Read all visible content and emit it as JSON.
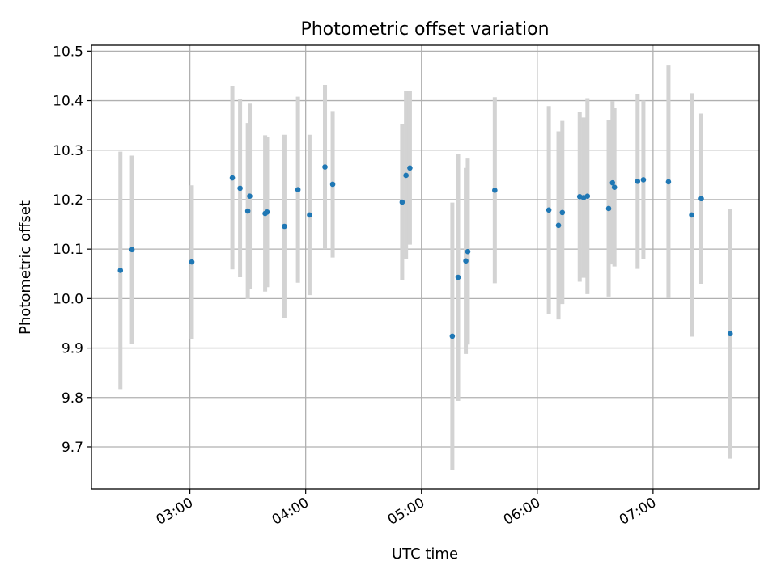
{
  "chart_data": {
    "type": "scatter",
    "title": "Photometric offset variation",
    "xlabel": "UTC time",
    "ylabel": "Photometric offset",
    "x_tick_labels": [
      "03:00",
      "04:00",
      "05:00",
      "06:00",
      "07:00"
    ],
    "x_ticks_minutes": [
      180,
      240,
      300,
      360,
      420
    ],
    "xlim_minutes": [
      129,
      475
    ],
    "y_ticks": [
      9.7,
      9.8,
      9.9,
      10.0,
      10.1,
      10.2,
      10.3,
      10.4,
      10.5
    ],
    "y_tick_labels": [
      "9.7",
      "9.8",
      "9.9",
      "10.0",
      "10.1",
      "10.2",
      "10.3",
      "10.4",
      "10.5"
    ],
    "ylim": [
      9.615,
      10.512
    ],
    "grid": true,
    "marker_color": "#1f77b4",
    "errorbar_color": "#d3d3d3",
    "series": [
      {
        "points": [
          {
            "t": "02:24",
            "y": 10.057,
            "err": 0.24
          },
          {
            "t": "02:30",
            "y": 10.099,
            "err": 0.19
          },
          {
            "t": "03:01",
            "y": 10.074,
            "err": 0.155
          },
          {
            "t": "03:22",
            "y": 10.244,
            "err": 0.185
          },
          {
            "t": "03:26",
            "y": 10.223,
            "err": 0.18
          },
          {
            "t": "03:30",
            "y": 10.177,
            "err": 0.178
          },
          {
            "t": "03:31",
            "y": 10.207,
            "err": 0.187
          },
          {
            "t": "03:39",
            "y": 10.172,
            "err": 0.158
          },
          {
            "t": "03:40",
            "y": 10.175,
            "err": 0.152
          },
          {
            "t": "03:49",
            "y": 10.146,
            "err": 0.185
          },
          {
            "t": "03:56",
            "y": 10.22,
            "err": 0.188
          },
          {
            "t": "04:02",
            "y": 10.169,
            "err": 0.162
          },
          {
            "t": "04:10",
            "y": 10.266,
            "err": 0.166
          },
          {
            "t": "04:14",
            "y": 10.231,
            "err": 0.148
          },
          {
            "t": "04:50",
            "y": 10.195,
            "err": 0.158
          },
          {
            "t": "04:52",
            "y": 10.249,
            "err": 0.17
          },
          {
            "t": "04:54",
            "y": 10.264,
            "err": 0.155
          },
          {
            "t": "05:16",
            "y": 9.924,
            "err": 0.27
          },
          {
            "t": "05:19",
            "y": 10.043,
            "err": 0.25
          },
          {
            "t": "05:23",
            "y": 10.076,
            "err": 0.188
          },
          {
            "t": "05:24",
            "y": 10.095,
            "err": 0.188
          },
          {
            "t": "05:38",
            "y": 10.219,
            "err": 0.188
          },
          {
            "t": "06:06",
            "y": 10.179,
            "err": 0.21
          },
          {
            "t": "06:11",
            "y": 10.148,
            "err": 0.19
          },
          {
            "t": "06:13",
            "y": 10.174,
            "err": 0.185
          },
          {
            "t": "06:22",
            "y": 10.206,
            "err": 0.172
          },
          {
            "t": "06:24",
            "y": 10.204,
            "err": 0.162
          },
          {
            "t": "06:26",
            "y": 10.207,
            "err": 0.198
          },
          {
            "t": "06:37",
            "y": 10.182,
            "err": 0.178
          },
          {
            "t": "06:39",
            "y": 10.234,
            "err": 0.165
          },
          {
            "t": "06:40",
            "y": 10.225,
            "err": 0.16
          },
          {
            "t": "06:52",
            "y": 10.237,
            "err": 0.177
          },
          {
            "t": "06:55",
            "y": 10.24,
            "err": 0.16
          },
          {
            "t": "07:08",
            "y": 10.236,
            "err": 0.235
          },
          {
            "t": "07:20",
            "y": 10.169,
            "err": 0.246
          },
          {
            "t": "07:25",
            "y": 10.202,
            "err": 0.172
          },
          {
            "t": "07:40",
            "y": 9.929,
            "err": 0.253
          }
        ]
      }
    ]
  }
}
